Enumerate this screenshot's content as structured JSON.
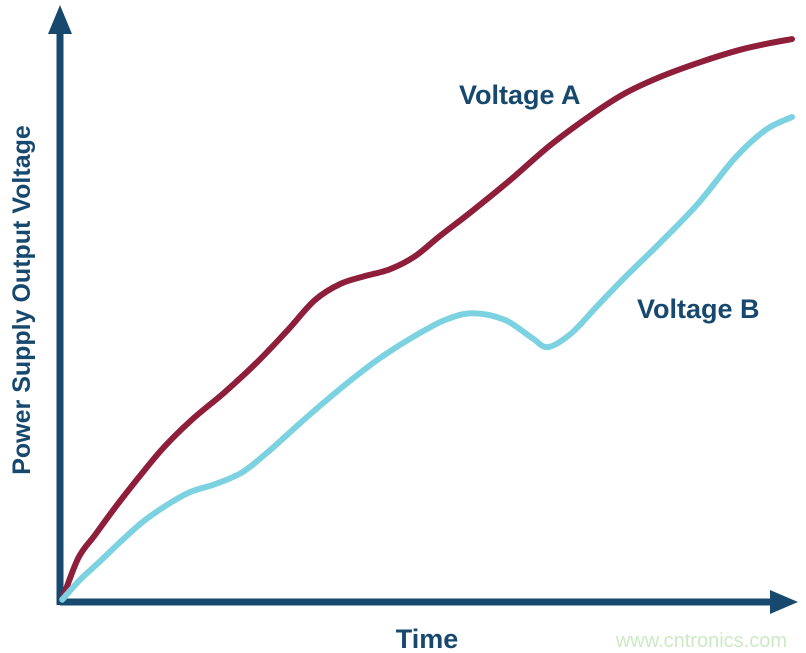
{
  "figure": {
    "background": "#FFFFFF",
    "watermark": {
      "text": "www.cntronics.com",
      "color": "#CDE9C5"
    }
  },
  "colors": {
    "axis": "#17496F",
    "label": "#17496F",
    "voltage_a": "#8E1E3A",
    "voltage_b": "#7DD2E2"
  },
  "chart_data": {
    "type": "line",
    "title": "",
    "xlabel": "Time",
    "ylabel": "Power Supply Output Voltage",
    "x_axis": {
      "min": 0,
      "max": 10,
      "ticks": [],
      "arrow": true,
      "unit": "arbitrary"
    },
    "y_axis": {
      "min": 0,
      "max": 10,
      "ticks": [],
      "arrow": true,
      "unit": "arbitrary"
    },
    "grid": false,
    "legend_position": "inline-labels",
    "series": [
      {
        "name": "Voltage A",
        "color": "#8E1E3A",
        "points": [
          [
            0.03,
            0.04
          ],
          [
            0.25,
            0.78
          ],
          [
            0.48,
            1.19
          ],
          [
            0.75,
            1.67
          ],
          [
            1.07,
            2.2
          ],
          [
            1.41,
            2.73
          ],
          [
            1.8,
            3.23
          ],
          [
            2.25,
            3.72
          ],
          [
            2.7,
            4.26
          ],
          [
            3.11,
            4.82
          ],
          [
            3.48,
            5.35
          ],
          [
            3.83,
            5.64
          ],
          [
            4.17,
            5.78
          ],
          [
            4.51,
            5.9
          ],
          [
            4.85,
            6.13
          ],
          [
            5.19,
            6.49
          ],
          [
            5.63,
            6.93
          ],
          [
            6.15,
            7.48
          ],
          [
            6.69,
            8.09
          ],
          [
            7.24,
            8.62
          ],
          [
            7.72,
            9.02
          ],
          [
            8.2,
            9.31
          ],
          [
            8.74,
            9.57
          ],
          [
            9.29,
            9.79
          ],
          [
            9.7,
            9.91
          ],
          [
            10.0,
            9.98
          ]
        ]
      },
      {
        "name": "Voltage B",
        "color": "#7DD2E2",
        "points": [
          [
            0.03,
            0.04
          ],
          [
            0.27,
            0.39
          ],
          [
            0.52,
            0.69
          ],
          [
            0.82,
            1.06
          ],
          [
            1.13,
            1.42
          ],
          [
            1.46,
            1.72
          ],
          [
            1.78,
            1.95
          ],
          [
            2.12,
            2.09
          ],
          [
            2.49,
            2.3
          ],
          [
            2.84,
            2.66
          ],
          [
            3.21,
            3.09
          ],
          [
            3.58,
            3.51
          ],
          [
            3.99,
            3.95
          ],
          [
            4.41,
            4.36
          ],
          [
            4.85,
            4.72
          ],
          [
            5.26,
            5.0
          ],
          [
            5.64,
            5.12
          ],
          [
            6.08,
            5.0
          ],
          [
            6.45,
            4.68
          ],
          [
            6.67,
            4.52
          ],
          [
            6.99,
            4.77
          ],
          [
            7.34,
            5.25
          ],
          [
            7.72,
            5.76
          ],
          [
            8.2,
            6.37
          ],
          [
            8.72,
            7.07
          ],
          [
            9.22,
            7.87
          ],
          [
            9.64,
            8.37
          ],
          [
            10.0,
            8.6
          ]
        ]
      }
    ]
  }
}
